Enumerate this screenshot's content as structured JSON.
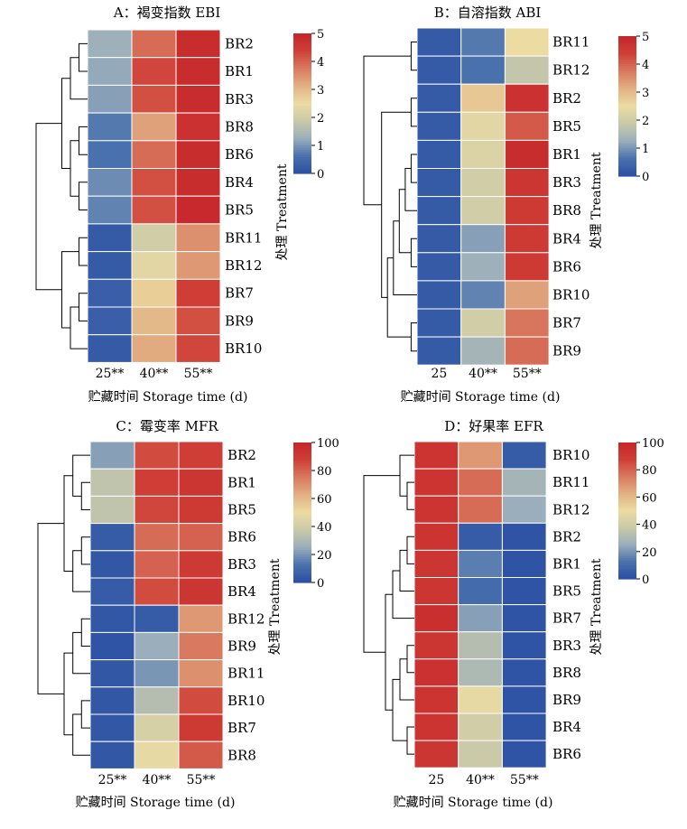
{
  "figure": {
    "ylabel": "处理 Treatment",
    "xlabel": "贮藏时间 Storage time (d)"
  },
  "colormap": [
    "#2b4ea3",
    "#4a72ad",
    "#9aaebb",
    "#c9c9a8",
    "#ecdca2",
    "#e2b083",
    "#d97a60",
    "#cf3f37",
    "#c5252a"
  ],
  "chart_data": [
    {
      "type": "heatmap",
      "title": "A：褐变指数 EBI",
      "columns": [
        "25**",
        "40**",
        "55**"
      ],
      "rows": [
        "BR2",
        "BR1",
        "BR3",
        "BR8",
        "BR6",
        "BR4",
        "BR5",
        "BR11",
        "BR12",
        "BR7",
        "BR9",
        "BR10"
      ],
      "values": [
        [
          1.3,
          3.9,
          4.8
        ],
        [
          1.2,
          4.3,
          4.8
        ],
        [
          1.1,
          4.2,
          4.8
        ],
        [
          0.7,
          3.3,
          4.7
        ],
        [
          0.6,
          3.9,
          4.8
        ],
        [
          0.9,
          4.2,
          4.8
        ],
        [
          0.8,
          4.2,
          4.9
        ],
        [
          0.2,
          2.0,
          3.5
        ],
        [
          0.2,
          2.3,
          3.4
        ],
        [
          0.3,
          2.7,
          4.4
        ],
        [
          0.3,
          3.0,
          4.2
        ],
        [
          0.2,
          3.2,
          4.3
        ]
      ],
      "colorbar": {
        "min": 0,
        "max": 5,
        "ticks": [
          0,
          1,
          2,
          3,
          4,
          5
        ]
      }
    },
    {
      "type": "heatmap",
      "title": "B：自溶指数 ABI",
      "columns": [
        "25",
        "40**",
        "55**"
      ],
      "rows": [
        "BR11",
        "BR12",
        "BR2",
        "BR5",
        "BR1",
        "BR3",
        "BR8",
        "BR4",
        "BR6",
        "BR10",
        "BR7",
        "BR9"
      ],
      "values": [
        [
          0.2,
          0.7,
          2.5
        ],
        [
          0.2,
          0.6,
          1.8
        ],
        [
          0.2,
          2.8,
          4.7
        ],
        [
          0.2,
          2.3,
          4.1
        ],
        [
          0.2,
          2.2,
          4.8
        ],
        [
          0.2,
          2.0,
          4.6
        ],
        [
          0.2,
          2.0,
          4.5
        ],
        [
          0.2,
          1.1,
          4.5
        ],
        [
          0.2,
          1.3,
          4.5
        ],
        [
          0.2,
          0.8,
          3.3
        ],
        [
          0.2,
          2.0,
          3.8
        ],
        [
          0.2,
          1.4,
          3.9
        ]
      ],
      "colorbar": {
        "min": 0,
        "max": 5,
        "ticks": [
          0,
          1,
          2,
          3,
          4,
          5
        ]
      }
    },
    {
      "type": "heatmap",
      "title": "C：霉变率 MFR",
      "columns": [
        "25**",
        "40**",
        "55**"
      ],
      "rows": [
        "BR2",
        "BR1",
        "BR5",
        "BR6",
        "BR3",
        "BR4",
        "BR12",
        "BR9",
        "BR11",
        "BR10",
        "BR7",
        "BR8"
      ],
      "values": [
        [
          22,
          85,
          88
        ],
        [
          35,
          88,
          92
        ],
        [
          35,
          86,
          90
        ],
        [
          5,
          78,
          80
        ],
        [
          3,
          80,
          90
        ],
        [
          5,
          85,
          92
        ],
        [
          3,
          5,
          68
        ],
        [
          2,
          25,
          75
        ],
        [
          3,
          20,
          70
        ],
        [
          3,
          32,
          85
        ],
        [
          3,
          42,
          90
        ],
        [
          3,
          48,
          82
        ]
      ],
      "colorbar": {
        "min": 0,
        "max": 100,
        "ticks": [
          0,
          20,
          40,
          60,
          80,
          100
        ]
      }
    },
    {
      "type": "heatmap",
      "title": "D：好果率 EFR",
      "columns": [
        "25",
        "40**",
        "55**"
      ],
      "rows": [
        "BR10",
        "BR11",
        "BR12",
        "BR2",
        "BR1",
        "BR5",
        "BR7",
        "BR3",
        "BR8",
        "BR9",
        "BR4",
        "BR6"
      ],
      "values": [
        [
          93,
          68,
          5
        ],
        [
          93,
          78,
          28
        ],
        [
          93,
          78,
          25
        ],
        [
          93,
          5,
          2
        ],
        [
          92,
          15,
          2
        ],
        [
          92,
          10,
          2
        ],
        [
          95,
          22,
          2
        ],
        [
          92,
          32,
          2
        ],
        [
          94,
          30,
          2
        ],
        [
          93,
          48,
          2
        ],
        [
          93,
          40,
          2
        ],
        [
          92,
          38,
          2
        ]
      ],
      "colorbar": {
        "min": 0,
        "max": 100,
        "ticks": [
          0,
          20,
          40,
          60,
          80,
          100
        ]
      }
    }
  ]
}
